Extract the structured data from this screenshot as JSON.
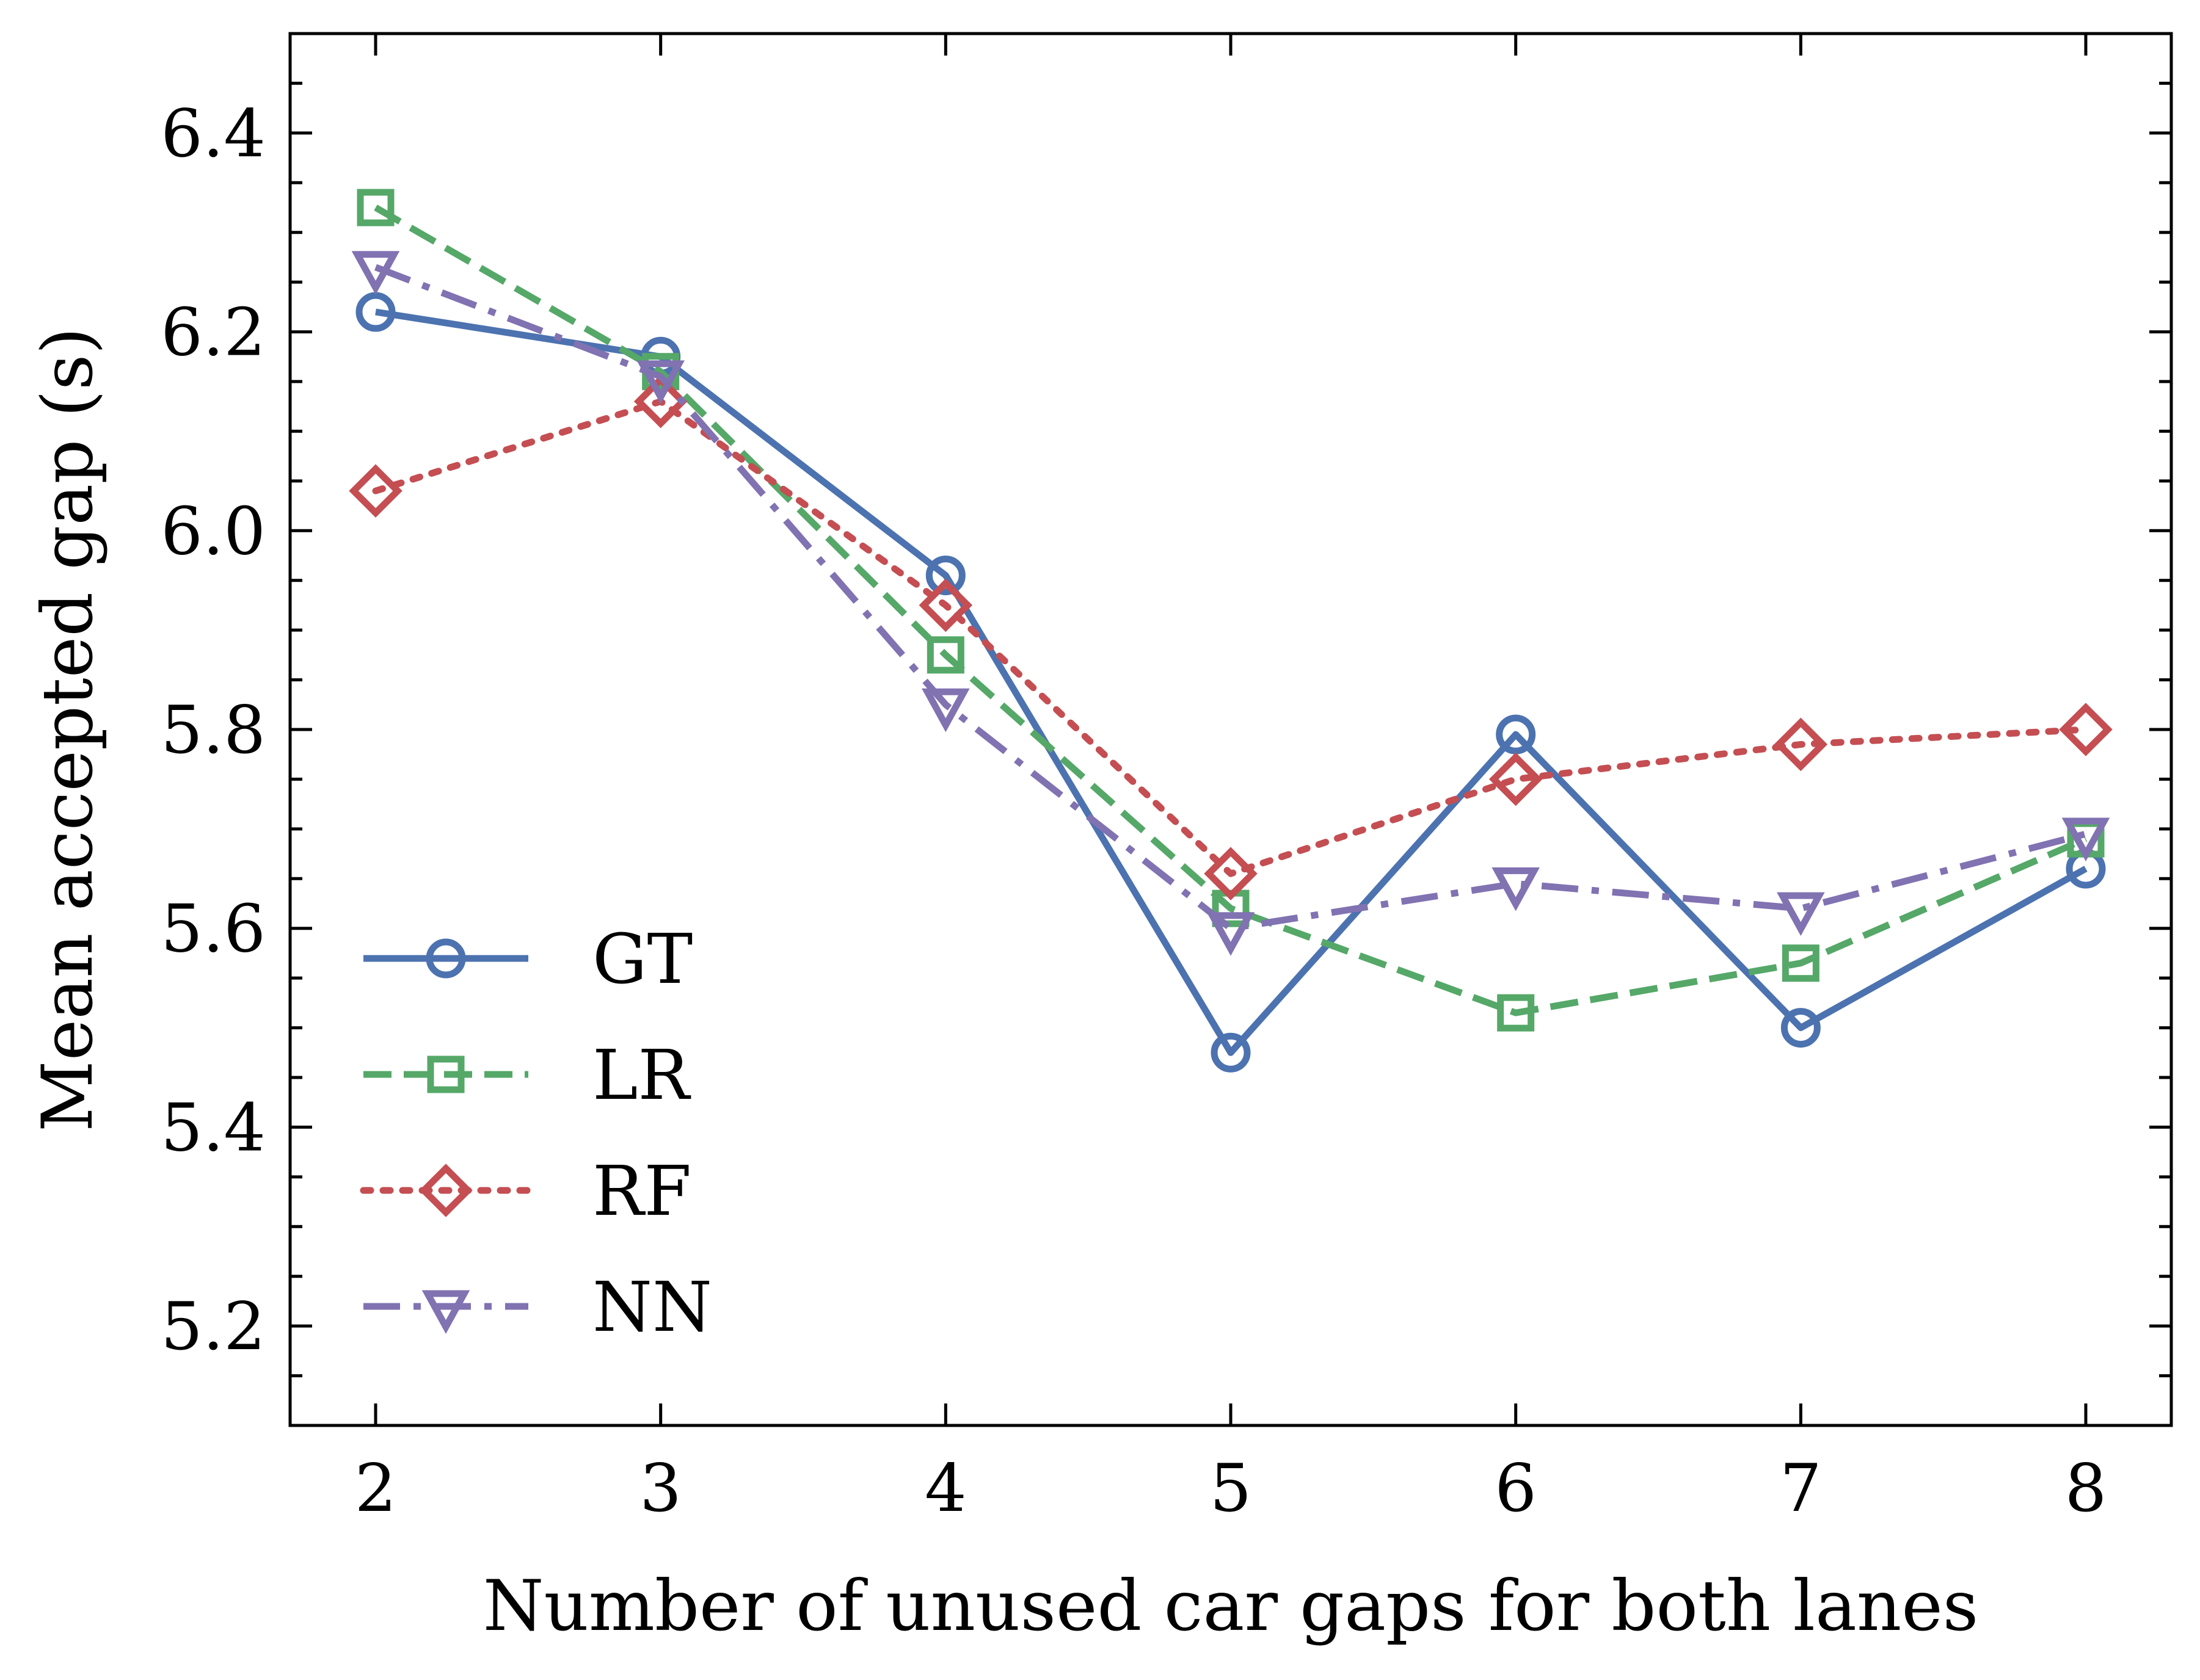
{
  "chart_data": {
    "type": "line",
    "title": "",
    "xlabel": "Number of unused car gaps for both lanes",
    "ylabel": "Mean accepted gap (s)",
    "x": [
      2,
      3,
      4,
      5,
      6,
      7,
      8
    ],
    "xlim": [
      1.7,
      8.3
    ],
    "ylim": [
      5.1,
      6.5
    ],
    "x_ticks": [
      "2",
      "3",
      "4",
      "5",
      "6",
      "7",
      "8"
    ],
    "y_ticks": [
      "5.2",
      "5.4",
      "5.6",
      "5.8",
      "6.0",
      "6.2",
      "6.4"
    ],
    "grid": false,
    "legend_position": "lower-left",
    "series": [
      {
        "name": "GT",
        "values": [
          6.22,
          6.175,
          5.955,
          5.475,
          5.795,
          5.5,
          5.66
        ],
        "color": "#4c72b0",
        "marker": "circle",
        "line_style": "solid"
      },
      {
        "name": "LR",
        "values": [
          6.325,
          6.16,
          5.875,
          5.62,
          5.515,
          5.565,
          5.69
        ],
        "color": "#55a868",
        "marker": "square",
        "line_style": "dashed"
      },
      {
        "name": "RF",
        "values": [
          6.04,
          6.13,
          5.925,
          5.655,
          5.75,
          5.785,
          5.8
        ],
        "color": "#c44e52",
        "marker": "diamond",
        "line_style": "dotted"
      },
      {
        "name": "NN",
        "values": [
          6.265,
          6.155,
          5.825,
          5.6,
          5.645,
          5.62,
          5.695
        ],
        "color": "#8172b2",
        "marker": "triangle-down",
        "line_style": "dash-dot"
      }
    ]
  }
}
